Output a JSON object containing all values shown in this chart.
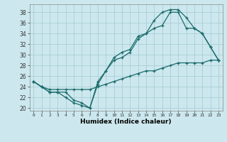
{
  "xlabel": "Humidex (Indice chaleur)",
  "background_color": "#cce8ee",
  "grid_color": "#aacdd6",
  "line_color": "#1a6b6b",
  "xlim": [
    -0.5,
    23.5
  ],
  "ylim": [
    19.5,
    39.5
  ],
  "xticks": [
    0,
    1,
    2,
    3,
    4,
    5,
    6,
    7,
    8,
    9,
    10,
    11,
    12,
    13,
    14,
    15,
    16,
    17,
    18,
    19,
    20,
    21,
    22,
    23
  ],
  "yticks": [
    20,
    22,
    24,
    26,
    28,
    30,
    32,
    34,
    36,
    38
  ],
  "line1_x": [
    0,
    1,
    2,
    3,
    4,
    5,
    6,
    7,
    8,
    9,
    10,
    11,
    12,
    13,
    14,
    15,
    16,
    17,
    18,
    19,
    20,
    21,
    22,
    23
  ],
  "line1_y": [
    25,
    24,
    23.5,
    23.5,
    23.5,
    23.5,
    23.5,
    23.5,
    24,
    24.5,
    25,
    25.5,
    26,
    26.5,
    27,
    27,
    27.5,
    28,
    28.5,
    28.5,
    28.5,
    28.5,
    29,
    29
  ],
  "line2_x": [
    0,
    1,
    2,
    3,
    4,
    5,
    6,
    7,
    8,
    9,
    10,
    11,
    12,
    13,
    14,
    15,
    16,
    17,
    18,
    19,
    20,
    21,
    22,
    23
  ],
  "line2_y": [
    25,
    24,
    23,
    23,
    23,
    21.5,
    21,
    20,
    25,
    27,
    29,
    29.5,
    30.5,
    33,
    34,
    35,
    35.5,
    38,
    38,
    35,
    35,
    34,
    31.5,
    29
  ],
  "line3_x": [
    0,
    1,
    2,
    3,
    4,
    5,
    6,
    7,
    8,
    9,
    10,
    11,
    12,
    13,
    14,
    15,
    16,
    17,
    18,
    19,
    20,
    21,
    22,
    23
  ],
  "line3_y": [
    25,
    24,
    23,
    23,
    22,
    21,
    20.5,
    20,
    24.5,
    27,
    29.5,
    30.5,
    31,
    33.5,
    34,
    36.5,
    38,
    38.5,
    38.5,
    37,
    35,
    34,
    31.5,
    29
  ]
}
